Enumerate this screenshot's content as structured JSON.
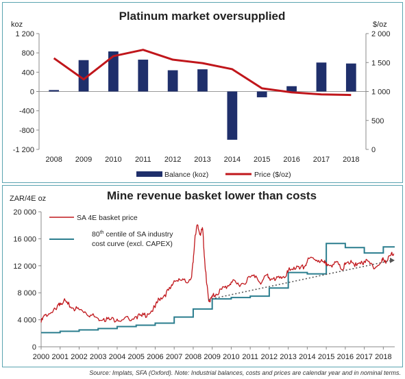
{
  "chart_data": [
    {
      "type": "bar",
      "title": "Platinum market oversupplied",
      "left_unit": "koz",
      "right_unit": "$/oz",
      "categories": [
        "2008",
        "2009",
        "2010",
        "2011",
        "2012",
        "2013",
        "2014",
        "2015",
        "2016",
        "2017",
        "2018"
      ],
      "left_ticks": [
        "1 200",
        "800",
        "400",
        "0",
        "-400",
        "-800",
        "-1 200"
      ],
      "right_ticks": [
        "2 000",
        "1 500",
        "1 000",
        "500",
        "0"
      ],
      "ylim_left": [
        -1200,
        1200
      ],
      "ylim_right": [
        0,
        2000
      ],
      "series": [
        {
          "name": "Balance (koz)",
          "type": "bar",
          "axis": "left",
          "values": [
            30,
            650,
            830,
            660,
            440,
            460,
            -1000,
            -120,
            110,
            600,
            580
          ]
        },
        {
          "name": "Price ($/oz)",
          "type": "line",
          "axis": "right",
          "values": [
            1575,
            1210,
            1610,
            1720,
            1550,
            1490,
            1385,
            1055,
            985,
            950,
            940
          ]
        }
      ],
      "colors": {
        "bar": "#1f2f6b",
        "line": "#c0161b"
      },
      "legend_position": "bottom"
    },
    {
      "type": "line",
      "title": "Mine revenue basket lower than costs",
      "ylabel": "ZAR/4E oz",
      "x_ticks": [
        "2000",
        "2001",
        "2002",
        "2003",
        "2004",
        "2005",
        "2006",
        "2007",
        "2008",
        "2009",
        "2010",
        "2011",
        "2012",
        "2013",
        "2014",
        "2015",
        "2016",
        "2017",
        "2018"
      ],
      "y_ticks": [
        "20 000",
        "16 000",
        "12 000",
        "8 000",
        "4 000",
        "0"
      ],
      "xlim": [
        2000,
        2018.6
      ],
      "ylim": [
        0,
        20000
      ],
      "series": [
        {
          "name": "SA 4E basket price",
          "kind": "line",
          "x": [
            2000,
            2000.2,
            2000.5,
            2000.8,
            2001,
            2001.2,
            2001.4,
            2001.7,
            2002,
            2002.3,
            2002.6,
            2003,
            2003.3,
            2003.6,
            2004,
            2004.3,
            2004.6,
            2005,
            2005.3,
            2005.6,
            2006,
            2006.2,
            2006.5,
            2006.8,
            2007,
            2007.3,
            2007.6,
            2007.9,
            2008,
            2008.1,
            2008.2,
            2008.3,
            2008.4,
            2008.5,
            2008.6,
            2008.7,
            2008.8,
            2008.9,
            2009,
            2009.2,
            2009.5,
            2009.8,
            2010,
            2010.3,
            2010.6,
            2011,
            2011.3,
            2011.6,
            2011.9,
            2012,
            2012.3,
            2012.6,
            2012.9,
            2013,
            2013.3,
            2013.6,
            2013.9,
            2014,
            2014.3,
            2014.6,
            2014.9,
            2015,
            2015.3,
            2015.6,
            2015.9,
            2016,
            2016.3,
            2016.6,
            2016.9,
            2017,
            2017.3,
            2017.6,
            2017.9,
            2018,
            2018.2,
            2018.4,
            2018.55
          ],
          "y": [
            3600,
            4700,
            5000,
            5500,
            6500,
            6900,
            6300,
            5700,
            5500,
            5200,
            4700,
            4200,
            4200,
            4000,
            4100,
            4000,
            4200,
            4500,
            4500,
            4900,
            5800,
            7100,
            7700,
            8600,
            9800,
            9900,
            9600,
            10200,
            12500,
            16500,
            18000,
            17200,
            16800,
            17400,
            13000,
            9500,
            7200,
            6800,
            7400,
            7800,
            8500,
            9000,
            9600,
            9300,
            9400,
            10300,
            10500,
            9500,
            10700,
            10200,
            9800,
            10400,
            10500,
            11200,
            11800,
            11500,
            12000,
            12700,
            13200,
            12800,
            12400,
            12500,
            11800,
            12600,
            11500,
            12200,
            12800,
            12000,
            12400,
            12700,
            12300,
            11800,
            12500,
            13000,
            12700,
            13600,
            13800
          ]
        },
        {
          "name": "80th centile of SA industry cost curve (excl. CAPEX)",
          "kind": "step",
          "x": [
            2000,
            2001,
            2002,
            2003,
            2004,
            2005,
            2006,
            2007,
            2008,
            2009,
            2010,
            2011,
            2012,
            2013,
            2014,
            2015,
            2016,
            2017,
            2018,
            2018.6
          ],
          "y": [
            2100,
            2300,
            2500,
            2700,
            3000,
            3200,
            3500,
            4400,
            5600,
            7100,
            7300,
            7500,
            8700,
            11000,
            10800,
            15300,
            14700,
            13900,
            14800,
            14800
          ]
        },
        {
          "name": "trend",
          "kind": "dotted",
          "x": [
            2008.8,
            2018.6
          ],
          "y": [
            7000,
            12800
          ]
        }
      ],
      "colors": {
        "basket": "#c0161b",
        "cost": "#2a7d8e",
        "trend": "#555555"
      },
      "legend": [
        {
          "label": "SA 4E basket price"
        },
        {
          "label_line1_pre": "80",
          "label_line1_sup": "th",
          "label_line1_post": " centile of SA industry",
          "label_line2": "cost curve (excl. CAPEX)"
        }
      ]
    }
  ],
  "source_note": "Source: Implats, SFA (Oxford). Note: Industrial balances, costs and prices are calendar year and in nominal terms."
}
